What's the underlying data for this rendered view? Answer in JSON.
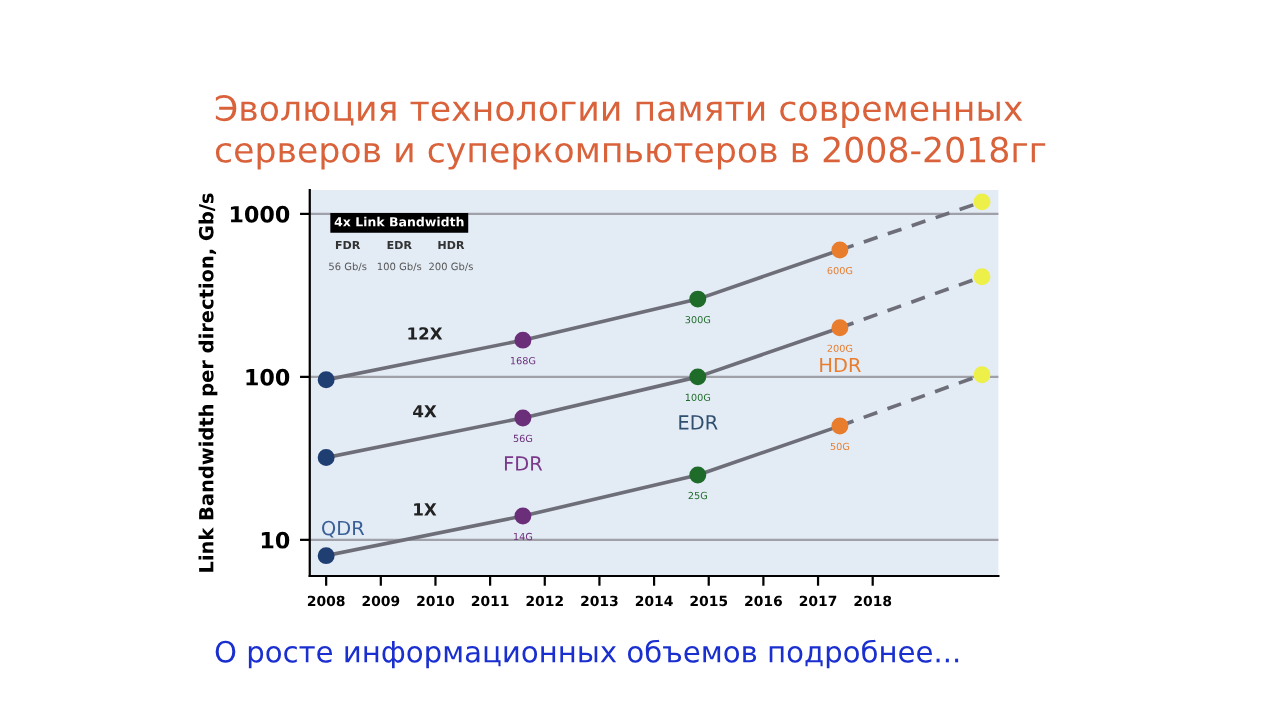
{
  "chart_data": {
    "type": "line",
    "title": "Эволюция технологии памяти современных\nсерверов и суперкомпьютеров в 2008-2018гг",
    "ylabel": "Link Bandwidth per direction, Gb/s",
    "xlim": [
      2007.7,
      2020.3
    ],
    "xticks": [
      2008,
      2009,
      2010,
      2011,
      2012,
      2013,
      2014,
      2015,
      2016,
      2017,
      2018
    ],
    "log": "y",
    "ylim": [
      6,
      1400
    ],
    "yticks": [
      10,
      100,
      1000
    ],
    "grid": "y",
    "marker": "circle",
    "line_style": "solid",
    "series": [
      {
        "name": "12X",
        "x": [
          2008,
          2011.6,
          2014.8,
          2017.4
        ],
        "values": [
          96,
          168,
          300,
          600
        ],
        "color": "#6e6e78",
        "colors": [
          "#1f3f73",
          "#6b2f7a",
          "#1e6b2a",
          "#e87d2e"
        ],
        "value_labels": [
          null,
          "168G",
          "300G",
          "600G"
        ]
      },
      {
        "name": "4X",
        "x": [
          2008,
          2011.6,
          2014.8,
          2017.4
        ],
        "values": [
          32,
          56,
          100,
          200
        ],
        "color": "#6e6e78",
        "colors": [
          "#1f3f73",
          "#6b2f7a",
          "#1e6b2a",
          "#e87d2e"
        ],
        "value_labels": [
          null,
          "56G",
          "100G",
          "200G"
        ]
      },
      {
        "name": "1X",
        "x": [
          2008,
          2011.6,
          2014.8,
          2017.4
        ],
        "values": [
          8,
          14,
          25,
          50
        ],
        "color": "#6e6e78",
        "colors": [
          "#1f3f73",
          "#6b2f7a",
          "#1e6b2a",
          "#e87d2e"
        ],
        "value_labels": [
          null,
          "14G",
          "25G",
          "50G"
        ]
      },
      {
        "x": [
          2017.4,
          2020
        ],
        "values": [
          600,
          1185
        ],
        "color": "#6e6e78",
        "line_style": "dashed",
        "marker": "none"
      },
      {
        "x": [
          2017.4,
          2020
        ],
        "values": [
          200,
          411
        ],
        "color": "#6e6e78",
        "line_style": "dashed",
        "marker": "none"
      },
      {
        "x": [
          2017.4,
          2020
        ],
        "values": [
          50,
          103
        ],
        "color": "#6e6e78",
        "line_style": "dashed",
        "marker": "none"
      },
      {
        "type": "scatter",
        "x": [
          2020,
          2020,
          2020
        ],
        "values": [
          1185,
          411,
          103
        ],
        "color": "#eef04a"
      }
    ],
    "annotations": [
      "4x Link Bandwidth",
      "FDR",
      "EDR",
      "HDR",
      "56 Gb/s",
      "100 Gb/s",
      "200 Gb/s",
      "О росте информационных объемов подробнее...",
      "QDR",
      "FDR",
      "EDR",
      "HDR"
    ]
  }
}
